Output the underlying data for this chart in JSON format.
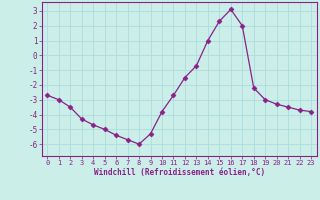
{
  "x": [
    0,
    1,
    2,
    3,
    4,
    5,
    6,
    7,
    8,
    9,
    10,
    11,
    12,
    13,
    14,
    15,
    16,
    17,
    18,
    19,
    20,
    21,
    22,
    23
  ],
  "y": [
    -2.7,
    -3.0,
    -3.5,
    -4.3,
    -4.7,
    -5.0,
    -5.4,
    -5.7,
    -6.0,
    -5.3,
    -3.8,
    -2.7,
    -1.5,
    -0.7,
    1.0,
    2.3,
    3.1,
    2.0,
    -2.2,
    -3.0,
    -3.3,
    -3.5,
    -3.7,
    -3.8
  ],
  "line_color": "#882288",
  "marker": "D",
  "marker_size": 2.5,
  "bg_color": "#cceee8",
  "grid_color": "#aadddd",
  "xlabel": "Windchill (Refroidissement éolien,°C)",
  "xlabel_color": "#882288",
  "tick_color": "#882288",
  "spine_color": "#882288",
  "ylim": [
    -6.8,
    3.6
  ],
  "xlim": [
    -0.5,
    23.5
  ],
  "yticks": [
    -6,
    -5,
    -4,
    -3,
    -2,
    -1,
    0,
    1,
    2,
    3
  ],
  "xticks": [
    0,
    1,
    2,
    3,
    4,
    5,
    6,
    7,
    8,
    9,
    10,
    11,
    12,
    13,
    14,
    15,
    16,
    17,
    18,
    19,
    20,
    21,
    22,
    23
  ]
}
